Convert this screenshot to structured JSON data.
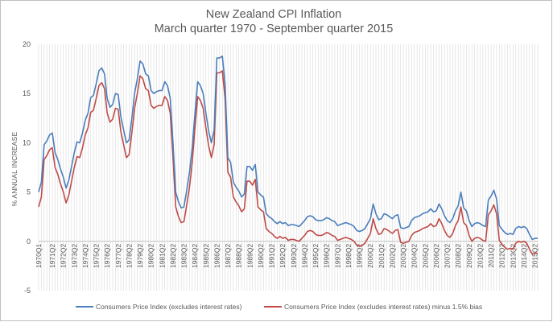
{
  "chart_data": {
    "type": "line",
    "title": "New Zealand CPI Inflation",
    "subtitle": "March quarter 1970 - September quarter 2015",
    "xlabel": "",
    "ylabel": "% ANNUAL INCREASE",
    "ylim": [
      -5,
      20
    ],
    "yticks": [
      -5,
      0,
      5,
      10,
      15,
      20
    ],
    "grid": "vertical lines at each quarter",
    "legend_position": "bottom",
    "colors": {
      "series1": "#4a7ebb",
      "series2": "#be4b48",
      "grid": "#d9d9d9",
      "axis": "#bfbfbf",
      "text": "#595959",
      "border": "#bfbfbf"
    },
    "tick_labels": [
      "1970Q1",
      "1971Q2",
      "1972Q2",
      "1973Q2",
      "1974Q2",
      "1975Q2",
      "1976Q2",
      "1977Q2",
      "1978Q2",
      "1979Q2",
      "1980Q2",
      "1981Q2",
      "1982Q2",
      "1983Q2",
      "1984Q2",
      "1985Q2",
      "1986Q2",
      "1987Q2",
      "1988Q2",
      "1989Q2",
      "1990Q2",
      "1991Q2",
      "1992Q2",
      "1993Q2",
      "1994Q2",
      "1995Q2",
      "1996Q2",
      "1997Q2",
      "1998Q2",
      "1999Q2",
      "2000Q2",
      "2001Q2",
      "2002Q2",
      "2003Q2",
      "2004Q2",
      "2005Q2",
      "2006Q2",
      "2007Q2",
      "2008Q2",
      "2009Q2",
      "2010Q2",
      "2011Q2",
      "2012Q2",
      "2013Q2",
      "2014Q2",
      "2015Q2"
    ],
    "series": [
      {
        "name": "Consumers Price Index (excludes interest rates)",
        "key_points": [
          [
            1970.0,
            5.0
          ],
          [
            1970.25,
            6.0
          ],
          [
            1970.5,
            9.8
          ],
          [
            1970.75,
            10.2
          ],
          [
            1971.0,
            10.8
          ],
          [
            1971.25,
            11.0
          ],
          [
            1971.5,
            9.0
          ],
          [
            1971.75,
            8.3
          ],
          [
            1972.0,
            7.3
          ],
          [
            1972.25,
            6.5
          ],
          [
            1972.5,
            5.4
          ],
          [
            1972.75,
            6.2
          ],
          [
            1973.0,
            7.6
          ],
          [
            1973.25,
            9.0
          ],
          [
            1973.5,
            10.1
          ],
          [
            1973.75,
            10.0
          ],
          [
            1974.0,
            11.0
          ],
          [
            1974.25,
            12.3
          ],
          [
            1974.5,
            13.0
          ],
          [
            1974.75,
            14.6
          ],
          [
            1975.0,
            14.8
          ],
          [
            1975.25,
            16.0
          ],
          [
            1975.5,
            17.3
          ],
          [
            1975.75,
            17.6
          ],
          [
            1976.0,
            17.0
          ],
          [
            1976.25,
            14.5
          ],
          [
            1976.5,
            13.6
          ],
          [
            1976.75,
            13.9
          ],
          [
            1977.0,
            15.0
          ],
          [
            1977.25,
            14.9
          ],
          [
            1977.5,
            12.6
          ],
          [
            1977.75,
            11.3
          ],
          [
            1978.0,
            10.0
          ],
          [
            1978.25,
            10.3
          ],
          [
            1978.5,
            12.5
          ],
          [
            1978.75,
            15.0
          ],
          [
            1979.0,
            16.5
          ],
          [
            1979.25,
            18.3
          ],
          [
            1979.5,
            18.0
          ],
          [
            1979.75,
            17.0
          ],
          [
            1980.0,
            16.8
          ],
          [
            1980.25,
            15.3
          ],
          [
            1980.5,
            15.0
          ],
          [
            1980.75,
            15.2
          ],
          [
            1981.0,
            15.3
          ],
          [
            1981.25,
            15.3
          ],
          [
            1981.5,
            16.2
          ],
          [
            1981.75,
            15.8
          ],
          [
            1982.0,
            14.5
          ],
          [
            1982.25,
            10.0
          ],
          [
            1982.5,
            5.0
          ],
          [
            1982.75,
            4.0
          ],
          [
            1983.0,
            3.4
          ],
          [
            1983.25,
            3.5
          ],
          [
            1983.5,
            5.2
          ],
          [
            1983.75,
            7.0
          ],
          [
            1984.0,
            9.5
          ],
          [
            1984.25,
            13.0
          ],
          [
            1984.5,
            16.2
          ],
          [
            1984.75,
            15.8
          ],
          [
            1985.0,
            15.0
          ],
          [
            1985.25,
            13.0
          ],
          [
            1985.5,
            11.2
          ],
          [
            1985.75,
            10.0
          ],
          [
            1986.0,
            11.3
          ],
          [
            1986.25,
            18.6
          ],
          [
            1986.5,
            18.6
          ],
          [
            1986.75,
            18.8
          ],
          [
            1987.0,
            16.0
          ],
          [
            1987.25,
            8.5
          ],
          [
            1987.5,
            8.0
          ],
          [
            1987.75,
            6.0
          ],
          [
            1988.0,
            5.5
          ],
          [
            1988.25,
            5.1
          ],
          [
            1988.5,
            4.5
          ],
          [
            1988.75,
            4.8
          ],
          [
            1989.0,
            7.6
          ],
          [
            1989.25,
            7.6
          ],
          [
            1989.5,
            7.2
          ],
          [
            1989.75,
            7.8
          ],
          [
            1990.0,
            5.0
          ],
          [
            1990.25,
            4.7
          ],
          [
            1990.5,
            4.5
          ],
          [
            1990.75,
            2.8
          ],
          [
            1991.0,
            2.5
          ],
          [
            1991.25,
            2.3
          ],
          [
            1991.5,
            2.0
          ],
          [
            1991.75,
            1.8
          ],
          [
            1992.0,
            2.0
          ],
          [
            1992.25,
            1.8
          ],
          [
            1992.5,
            1.9
          ],
          [
            1992.75,
            1.6
          ],
          [
            1993.0,
            1.7
          ],
          [
            1993.25,
            1.7
          ],
          [
            1993.5,
            1.6
          ],
          [
            1993.75,
            1.5
          ],
          [
            1994.0,
            1.8
          ],
          [
            1994.25,
            2.1
          ],
          [
            1994.5,
            2.5
          ],
          [
            1994.75,
            2.6
          ],
          [
            1995.0,
            2.5
          ],
          [
            1995.25,
            2.2
          ],
          [
            1995.5,
            2.1
          ],
          [
            1995.75,
            2.1
          ],
          [
            1996.0,
            2.2
          ],
          [
            1996.25,
            2.4
          ],
          [
            1996.5,
            2.3
          ],
          [
            1996.75,
            2.1
          ],
          [
            1997.0,
            2.0
          ],
          [
            1997.25,
            1.6
          ],
          [
            1997.5,
            1.7
          ],
          [
            1997.75,
            1.8
          ],
          [
            1998.0,
            1.9
          ],
          [
            1998.25,
            1.8
          ],
          [
            1998.5,
            1.7
          ],
          [
            1998.75,
            1.5
          ],
          [
            1999.0,
            1.1
          ],
          [
            1999.25,
            1.0
          ],
          [
            1999.5,
            1.1
          ],
          [
            1999.75,
            1.3
          ],
          [
            2000.0,
            1.8
          ],
          [
            2000.25,
            2.3
          ],
          [
            2000.5,
            3.8
          ],
          [
            2000.75,
            2.8
          ],
          [
            2001.0,
            2.2
          ],
          [
            2001.25,
            2.3
          ],
          [
            2001.5,
            2.8
          ],
          [
            2001.75,
            2.7
          ],
          [
            2002.0,
            2.5
          ],
          [
            2002.25,
            2.3
          ],
          [
            2002.5,
            2.6
          ],
          [
            2002.75,
            2.7
          ],
          [
            2003.0,
            1.4
          ],
          [
            2003.25,
            1.3
          ],
          [
            2003.5,
            1.4
          ],
          [
            2003.75,
            1.5
          ],
          [
            2004.0,
            2.1
          ],
          [
            2004.25,
            2.4
          ],
          [
            2004.5,
            2.5
          ],
          [
            2004.75,
            2.6
          ],
          [
            2005.0,
            2.8
          ],
          [
            2005.25,
            2.9
          ],
          [
            2005.5,
            3.0
          ],
          [
            2005.75,
            3.3
          ],
          [
            2006.0,
            3.0
          ],
          [
            2006.25,
            3.1
          ],
          [
            2006.5,
            3.8
          ],
          [
            2006.75,
            3.3
          ],
          [
            2007.0,
            2.6
          ],
          [
            2007.25,
            2.1
          ],
          [
            2007.5,
            1.9
          ],
          [
            2007.75,
            2.3
          ],
          [
            2008.0,
            3.1
          ],
          [
            2008.25,
            3.6
          ],
          [
            2008.5,
            5.0
          ],
          [
            2008.75,
            3.4
          ],
          [
            2009.0,
            3.1
          ],
          [
            2009.25,
            2.1
          ],
          [
            2009.5,
            1.5
          ],
          [
            2009.75,
            1.8
          ],
          [
            2010.0,
            1.9
          ],
          [
            2010.25,
            1.8
          ],
          [
            2010.5,
            1.6
          ],
          [
            2010.75,
            1.5
          ],
          [
            2011.0,
            4.2
          ],
          [
            2011.25,
            4.6
          ],
          [
            2011.5,
            5.2
          ],
          [
            2011.75,
            4.3
          ],
          [
            2012.0,
            1.6
          ],
          [
            2012.25,
            1.2
          ],
          [
            2012.5,
            0.9
          ],
          [
            2012.75,
            0.7
          ],
          [
            2013.0,
            0.8
          ],
          [
            2013.25,
            0.7
          ],
          [
            2013.5,
            1.3
          ],
          [
            2013.75,
            1.5
          ],
          [
            2014.0,
            1.4
          ],
          [
            2014.25,
            1.5
          ],
          [
            2014.5,
            1.3
          ],
          [
            2014.75,
            0.7
          ],
          [
            2015.0,
            0.2
          ],
          [
            2015.25,
            0.3
          ],
          [
            2015.5,
            0.3
          ]
        ]
      },
      {
        "name": "Consumers Price Index (excludes interest rates) minus 1.5% bias",
        "offset_from_series1": -1.5,
        "note": "series 1 minus 1.5 percentage points"
      }
    ]
  },
  "legend": {
    "item1": "Consumers Price Index (excludes interest rates)",
    "item2": "Consumers Price Index (excludes interest rates) minus 1.5% bias"
  }
}
